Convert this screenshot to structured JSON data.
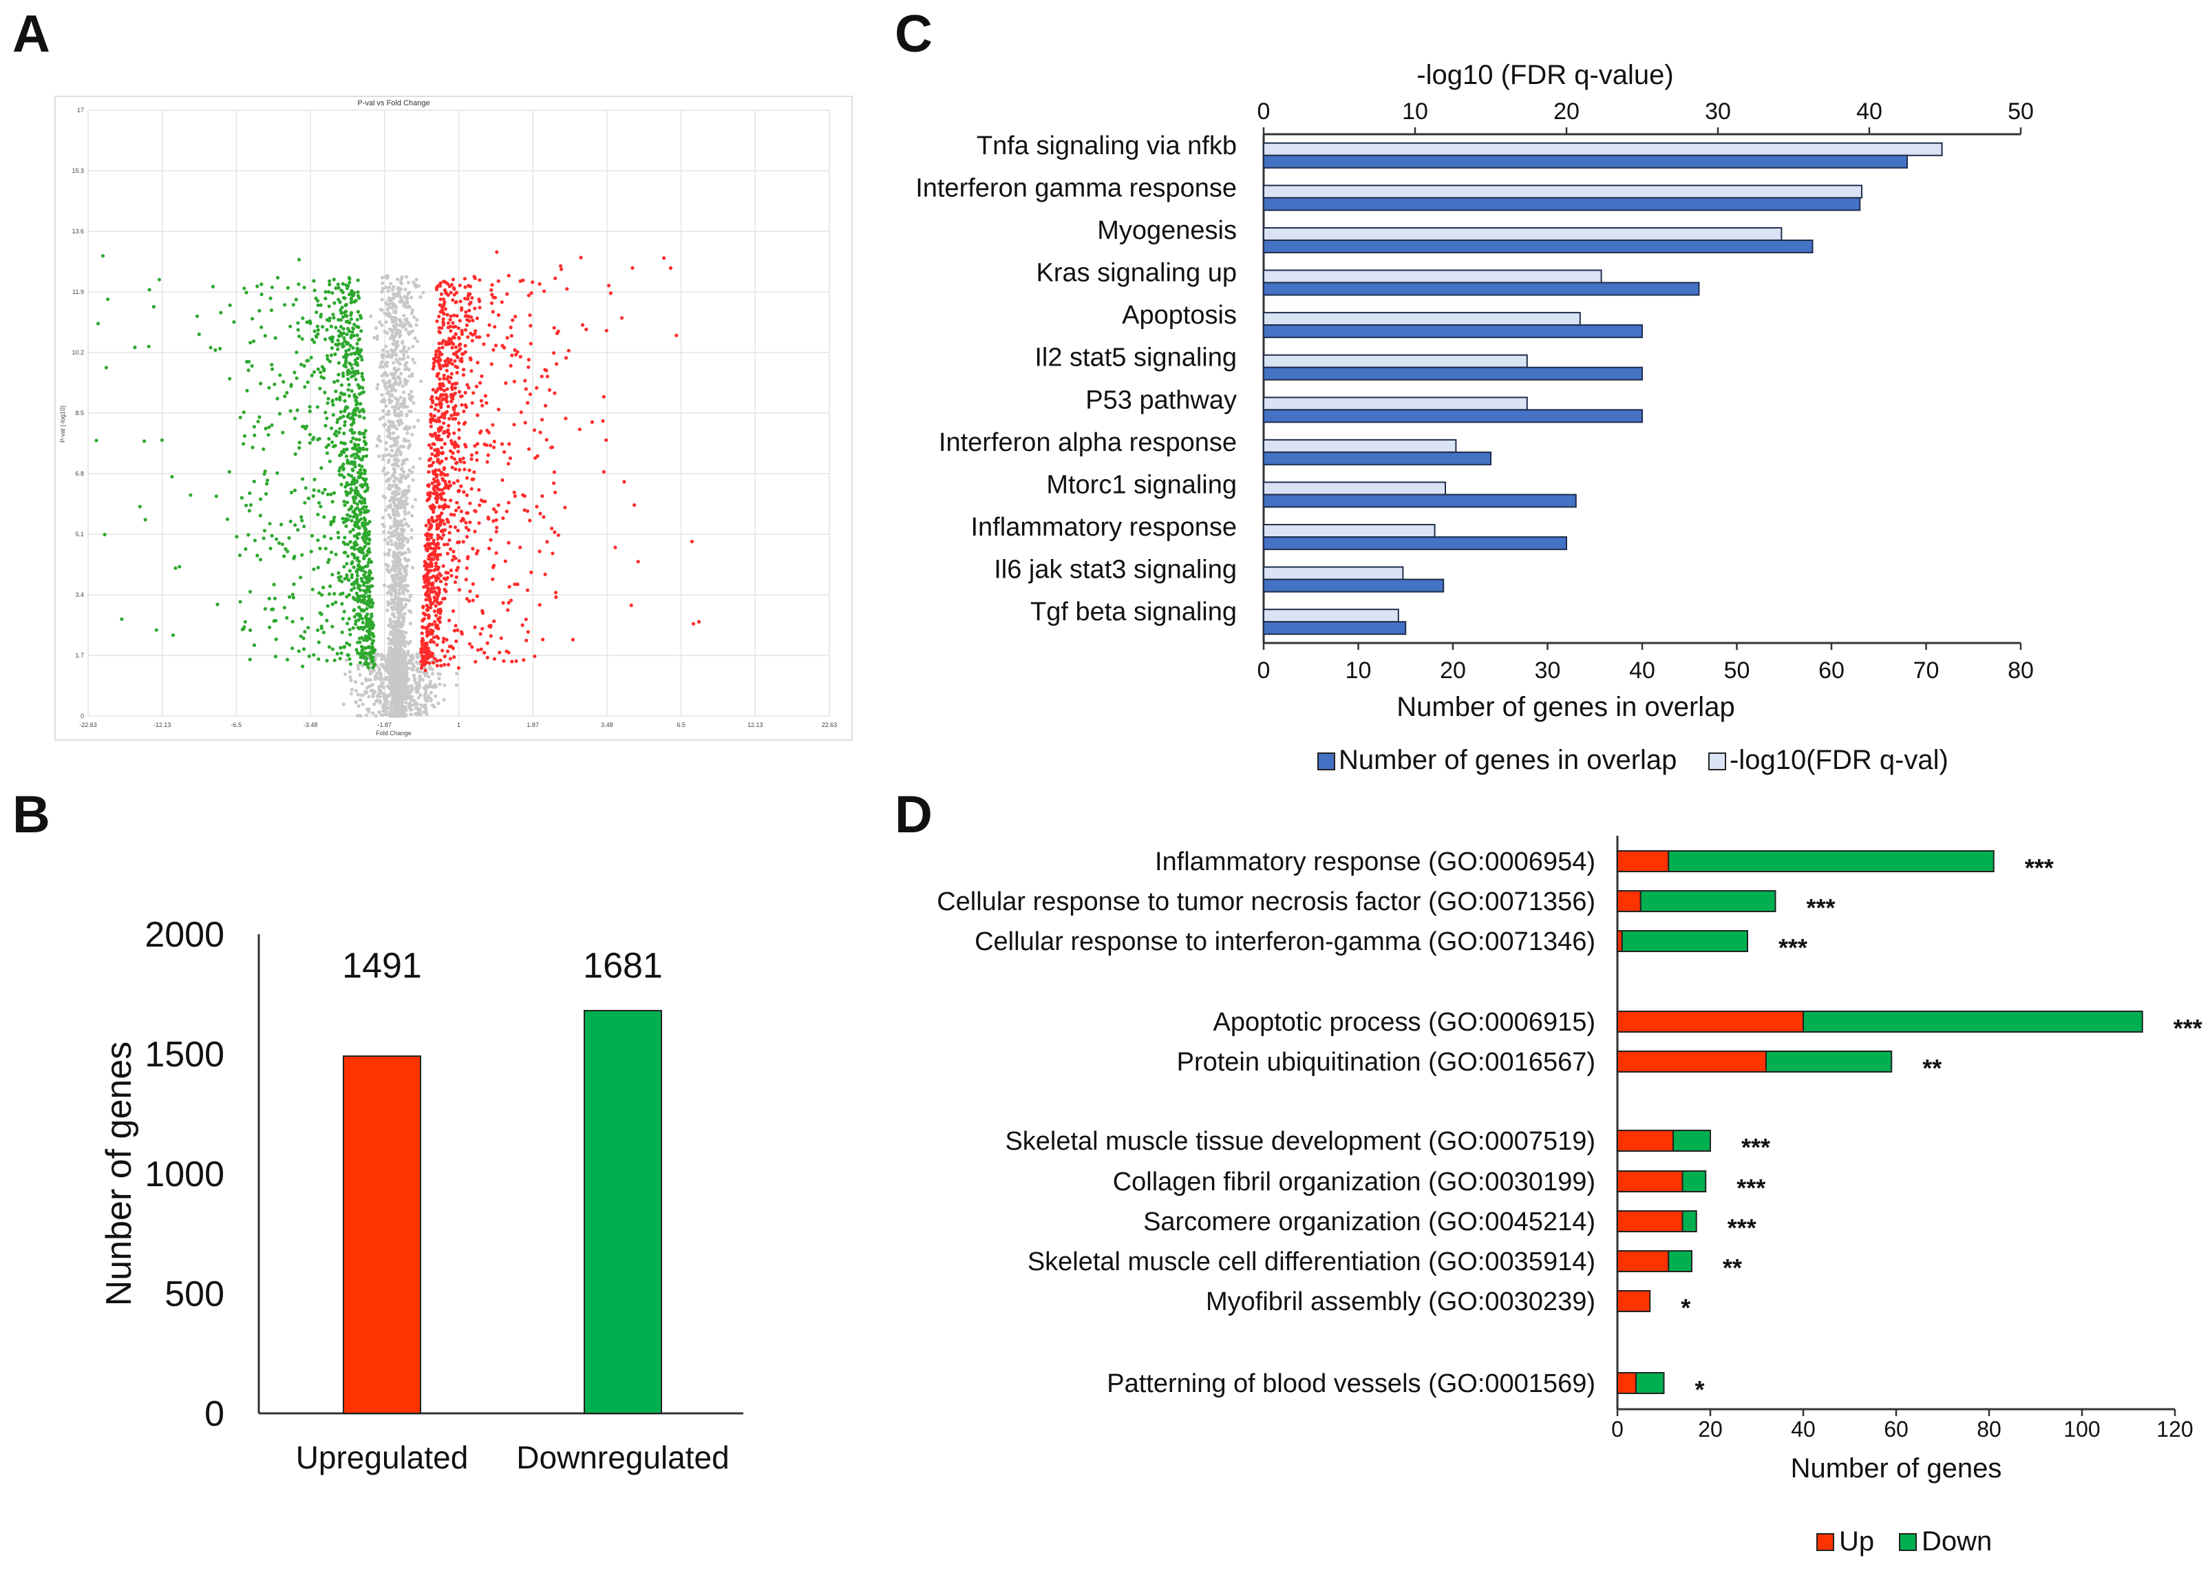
{
  "panels": {
    "a": "A",
    "b": "B",
    "c": "C",
    "d": "D"
  },
  "colors": {
    "up": "#ff3300",
    "down": "#00b050",
    "up_dark": "#e8261a",
    "down_dark": "#13a538",
    "volcano_up": "#ff2b2b",
    "volcano_down": "#2ea82e",
    "volcano_ns": "#c8c8c8",
    "overlap_bar": "#4472c4",
    "fdr_bar": "#dae3f3"
  },
  "chart_data": [
    {
      "id": "A",
      "type": "scatter",
      "title": "P-val vs Fold Change",
      "xlabel": "Fold Change",
      "ylabel": "P-val (-log10)",
      "x_ticks": [
        "-22.63",
        "-12.13",
        "-6.5",
        "-3.48",
        "-1.87",
        "1",
        "1.87",
        "3.48",
        "6.5",
        "12.13",
        "22.63"
      ],
      "y_ticks": [
        "0",
        "1.7",
        "3.4",
        "5.1",
        "6.8",
        "8.5",
        "10.2",
        "11.9",
        "13.6",
        "15.3",
        "17"
      ],
      "ylim": [
        0,
        17
      ],
      "groups": [
        "down",
        "not significant",
        "up"
      ],
      "grid": true
    },
    {
      "id": "B",
      "type": "bar",
      "categories": [
        "Upregulated",
        "Downregulated"
      ],
      "values": [
        1491,
        1681
      ],
      "data_labels": [
        "1491",
        "1681"
      ],
      "ylabel": "Nunber of genes",
      "ylim": [
        0,
        2000
      ],
      "yticks": [
        "0",
        "500",
        "1000",
        "1500",
        "2000"
      ],
      "colors": [
        "#ff3300",
        "#00b050"
      ]
    },
    {
      "id": "C",
      "type": "bar",
      "orientation": "horizontal",
      "categories": [
        "Tnfa signaling via nfkb",
        "Interferon gamma response",
        "Myogenesis",
        "Kras signaling up",
        "Apoptosis",
        "Il2 stat5 signaling",
        "P53 pathway",
        "Interferon alpha response",
        "Mtorc1 signaling",
        "Inflammatory response",
        "Il6 jak stat3 signaling",
        "Tgf beta signaling"
      ],
      "series": [
        {
          "name": "-log10(FDR q-val)",
          "axis": "top",
          "values": [
            44.8,
            39.5,
            34.2,
            22.3,
            20.9,
            17.4,
            17.4,
            12.7,
            12.0,
            11.3,
            9.2,
            8.9
          ]
        },
        {
          "name": "Number of genes in overlap",
          "axis": "bottom",
          "values": [
            68,
            63,
            58,
            46,
            40,
            40,
            40,
            24,
            33,
            32,
            19,
            15
          ]
        }
      ],
      "top_axis": {
        "label": "-log10 (FDR q-value)",
        "ticks": [
          "0",
          "10",
          "20",
          "30",
          "40",
          "50"
        ],
        "lim": [
          0,
          50
        ]
      },
      "bottom_axis": {
        "label": "Number of genes in overlap",
        "ticks": [
          "0",
          "10",
          "20",
          "30",
          "40",
          "50",
          "60",
          "70",
          "80"
        ],
        "lim": [
          0,
          80
        ]
      },
      "legend": [
        "Number of genes in overlap",
        "-log10(FDR q-val)"
      ],
      "legend_position": "bottom"
    },
    {
      "id": "D",
      "type": "bar",
      "orientation": "horizontal",
      "stacked": true,
      "categories": [
        "Inflammatory response (GO:0006954)",
        "Cellular response to tumor necrosis factor (GO:0071356)",
        "Cellular response to interferon-gamma (GO:0071346)",
        "Apoptotic process (GO:0006915)",
        "Protein ubiquitination (GO:0016567)",
        "Skeletal muscle tissue development (GO:0007519)",
        "Collagen fibril organization (GO:0030199)",
        "Sarcomere organization (GO:0045214)",
        "Skeletal muscle cell differentiation (GO:0035914)",
        "Myofibril assembly (GO:0030239)",
        "Patterning of blood vessels (GO:0001569)"
      ],
      "groups": [
        0,
        0,
        0,
        1,
        1,
        2,
        2,
        2,
        2,
        2,
        3
      ],
      "series": [
        {
          "name": "Up",
          "values": [
            11,
            5,
            1,
            40,
            32,
            12,
            14,
            14,
            11,
            7,
            4
          ]
        },
        {
          "name": "Down",
          "values": [
            70,
            29,
            27,
            73,
            27,
            8,
            5,
            3,
            5,
            0,
            6
          ]
        }
      ],
      "significance": [
        "***",
        "***",
        "***",
        "***",
        "**",
        "***",
        "***",
        "***",
        "**",
        "*",
        "*"
      ],
      "xlabel": "Number of genes",
      "xticks": [
        "0",
        "20",
        "40",
        "60",
        "80",
        "100",
        "120"
      ],
      "xlim": [
        0,
        120
      ],
      "legend": [
        "Up",
        "Down"
      ],
      "legend_position": "bottom-right"
    }
  ]
}
